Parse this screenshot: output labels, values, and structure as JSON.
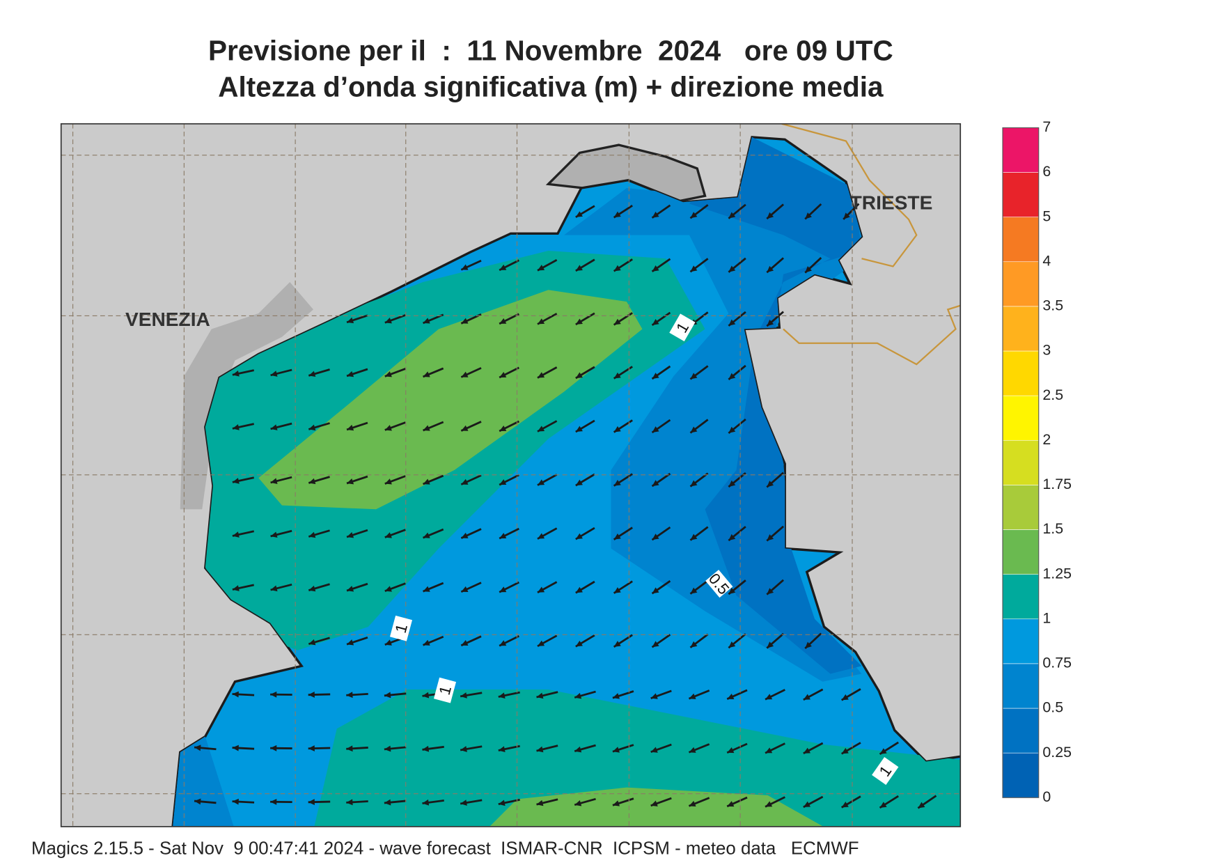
{
  "title": [
    "Previsione per il  :  11 Novembre  2024   ore 09 UTC",
    "Altezza d’onda significativa (m) + direzione media"
  ],
  "places": [
    "VENEZIA",
    "TRIESTE"
  ],
  "contour_labels": [
    "1",
    "1",
    "1",
    "0.5",
    "1"
  ],
  "colorbar": {
    "levels": [
      0,
      0.25,
      0.5,
      0.75,
      1,
      1.25,
      1.5,
      1.75,
      2,
      2.5,
      3,
      3.5,
      4,
      5,
      6,
      7
    ],
    "colors": [
      "#0062b4",
      "#0072c2",
      "#0084cf",
      "#0099de",
      "#00aa9c",
      "#6aba50",
      "#a8cb3a",
      "#d6de20",
      "#fff500",
      "#ffd800",
      "#ffb21c",
      "#ff9a24",
      "#f57a22",
      "#e8232a",
      "#ec1567"
    ]
  },
  "footer": "Magics 2.15.5 - Sat Nov  9 00:47:41 2024 - wave forecast  ISMAR-CNR  ICPSM - meteo data   ECMWF"
}
